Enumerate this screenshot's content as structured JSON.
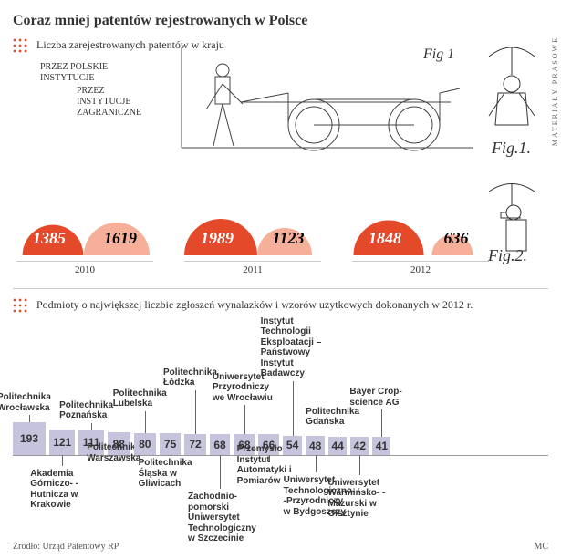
{
  "title": "Coraz mniej patentów rejestrowanych w Polsce",
  "subtitle": "Liczba zarejestrowanych patentów w kraju",
  "series": {
    "dark_label": "PRZEZ POLSKIE INSTYTUCJE",
    "light_label": "PRZEZ INSTYTUCJE ZAGRANICZNE",
    "dark_color": "#e44a2a",
    "light_color": "#f6b09a",
    "max_value": 1989
  },
  "years": [
    {
      "year": "2010",
      "dark": 1385,
      "light": 1619
    },
    {
      "year": "2011",
      "dark": 1989,
      "light": 1123
    },
    {
      "year": "2012",
      "dark": 1848,
      "light": 636
    }
  ],
  "patent_drawing": {
    "fig_top": "Fig.1",
    "fig1": "Fig.1.",
    "fig2": "Fig.2."
  },
  "side_credit": "MATERIAŁY PRASOWE",
  "subtitle2": "Podmioty o największej liczbie zgłoszeń wynalazków i wzorów użytkowych dokonanych w 2012 r.",
  "entities": {
    "box_color": "#c6c4dc",
    "max_value": 193,
    "min_size": 20,
    "max_size": 36,
    "items": [
      {
        "value": 193,
        "label": "Politechnika Wrocławska",
        "pos": "top"
      },
      {
        "value": 121,
        "label": "Akademia Górniczo-\n-Hutnicza\nw Krakowie",
        "pos": "bot"
      },
      {
        "value": 111,
        "label": "Politechnika Poznańska",
        "pos": "top"
      },
      {
        "value": 88,
        "label": "Politechnika Warszawska",
        "pos": "bot"
      },
      {
        "value": 80,
        "label": "Politechnika Lubelska",
        "pos": "top"
      },
      {
        "value": 75,
        "label": "Politechnika Śląska\nw Gliwicach",
        "pos": "bot"
      },
      {
        "value": 72,
        "label": "Politechnika Łódzka",
        "pos": "top"
      },
      {
        "value": 68,
        "label": "Zachodnio-\npomorski Uniwersytet Technologiczny\nw Szczecinie",
        "pos": "bot"
      },
      {
        "value": 68,
        "label": "Uniwersytet Przyrodniczy\nwe Wrocławiu",
        "pos": "top"
      },
      {
        "value": 66,
        "label": "Przemysłowy Instytut Automatyki i Pomiarów",
        "pos": "bot"
      },
      {
        "value": 54,
        "label": "Instytut Technologii Eksploatacji\n– Państwowy Instytut Badawczy",
        "pos": "top"
      },
      {
        "value": 48,
        "label": "Uniwersytet Technologiczno-\n-Przyrodniczy\nw Bydgoszczy",
        "pos": "bot"
      },
      {
        "value": 44,
        "label": "Politechnika Gdańska",
        "pos": "top"
      },
      {
        "value": 42,
        "label": "Uniwersytet Warmińsko-\n-Mazurski\nw Olsztynie",
        "pos": "bot"
      },
      {
        "value": 41,
        "label": "Bayer Crop-\nscience\nAG",
        "pos": "top"
      }
    ]
  },
  "source": "Źródło: Urząd Patentowy RP",
  "mc": "MC"
}
